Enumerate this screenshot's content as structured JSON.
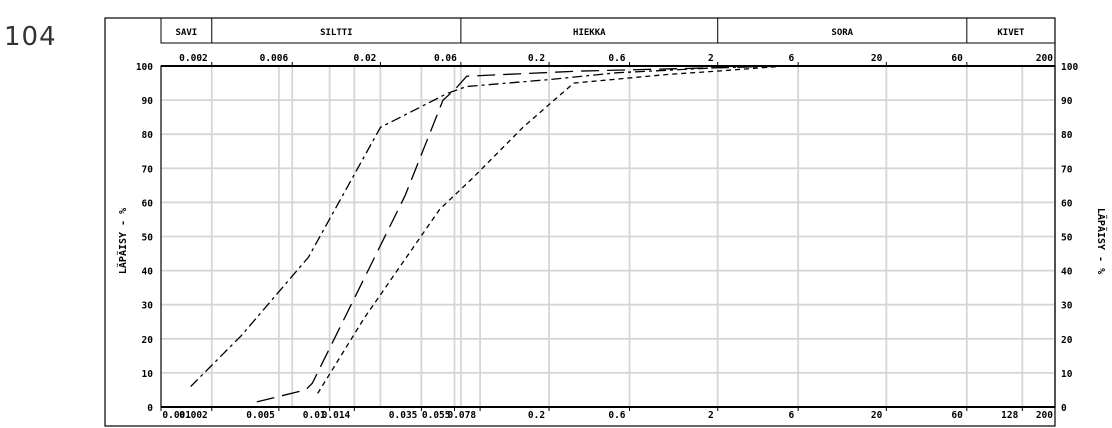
{
  "page_number": "104",
  "chart_data": {
    "type": "line",
    "x_scale": "log",
    "xlim": [
      0.001,
      200
    ],
    "ylim": [
      0,
      100
    ],
    "ylabel": "LÄPÄISY - %",
    "ylabel_right": "LÄPÄISY - %",
    "yticks": [
      0,
      10,
      20,
      30,
      40,
      50,
      60,
      70,
      80,
      90,
      100
    ],
    "soil_bands": [
      {
        "label": "SAVI",
        "from": 0.001,
        "to": 0.002
      },
      {
        "label": "SILTTI",
        "from": 0.002,
        "to": 0.06
      },
      {
        "label": "HIEKKA",
        "from": 0.06,
        "to": 2
      },
      {
        "label": "SORA",
        "from": 2,
        "to": 60
      },
      {
        "label": "KIVET",
        "from": 60,
        "to": 200
      }
    ],
    "top_ticks": [
      {
        "value": 0.002,
        "label": "0.002"
      },
      {
        "value": 0.006,
        "label": "0.006"
      },
      {
        "value": 0.02,
        "label": "0.02"
      },
      {
        "value": 0.06,
        "label": "0.06"
      },
      {
        "value": 0.2,
        "label": "0.2"
      },
      {
        "value": 0.6,
        "label": "0.6"
      },
      {
        "value": 2,
        "label": "2"
      },
      {
        "value": 6,
        "label": "6"
      },
      {
        "value": 20,
        "label": "20"
      },
      {
        "value": 60,
        "label": "60"
      },
      {
        "value": 200,
        "label": "200"
      }
    ],
    "bottom_ticks": [
      {
        "value": 0.001,
        "label": "0.001"
      },
      {
        "value": 0.002,
        "label": "0.002"
      },
      {
        "value": 0.005,
        "label": "0.005"
      },
      {
        "value": 0.01,
        "label": "0.01"
      },
      {
        "value": 0.014,
        "label": "0.014"
      },
      {
        "value": 0.035,
        "label": "0.035"
      },
      {
        "value": 0.055,
        "label": "0.055"
      },
      {
        "value": 0.078,
        "label": "0.078"
      },
      {
        "value": 0.2,
        "label": "0.2"
      },
      {
        "value": 0.6,
        "label": "0.6"
      },
      {
        "value": 2,
        "label": "2"
      },
      {
        "value": 6,
        "label": "6"
      },
      {
        "value": 20,
        "label": "20"
      },
      {
        "value": 60,
        "label": "60"
      },
      {
        "value": 128,
        "label": "128"
      },
      {
        "value": 200,
        "label": "200"
      }
    ],
    "gridlines_x": [
      0.001,
      0.002,
      0.005,
      0.006,
      0.01,
      0.014,
      0.02,
      0.035,
      0.055,
      0.06,
      0.078,
      0.2,
      0.6,
      2,
      6,
      20,
      60,
      128,
      200
    ],
    "grid": true,
    "series": [
      {
        "style": "dash-dot",
        "dash": "10,4,3,4",
        "x": [
          0.0015,
          0.003,
          0.0075,
          0.02,
          0.05,
          0.065,
          0.2,
          0.5,
          2,
          5
        ],
        "y": [
          6,
          21,
          44,
          82,
          92,
          94,
          96,
          98,
          99.5,
          100
        ]
      },
      {
        "style": "long-dash",
        "dash": "18,8",
        "x": [
          0.0037,
          0.0072,
          0.0079,
          0.028,
          0.047,
          0.055,
          0.065,
          0.3,
          2,
          5
        ],
        "y": [
          1.5,
          5,
          7,
          62,
          90,
          93,
          97,
          98.5,
          99.5,
          100
        ]
      },
      {
        "style": "short-dash",
        "dash": "5,4",
        "x": [
          0.0085,
          0.016,
          0.045,
          0.07,
          0.14,
          0.28,
          1.0,
          2,
          5
        ],
        "y": [
          4,
          26,
          58,
          67,
          82,
          95,
          97.5,
          98.5,
          100
        ]
      }
    ]
  }
}
